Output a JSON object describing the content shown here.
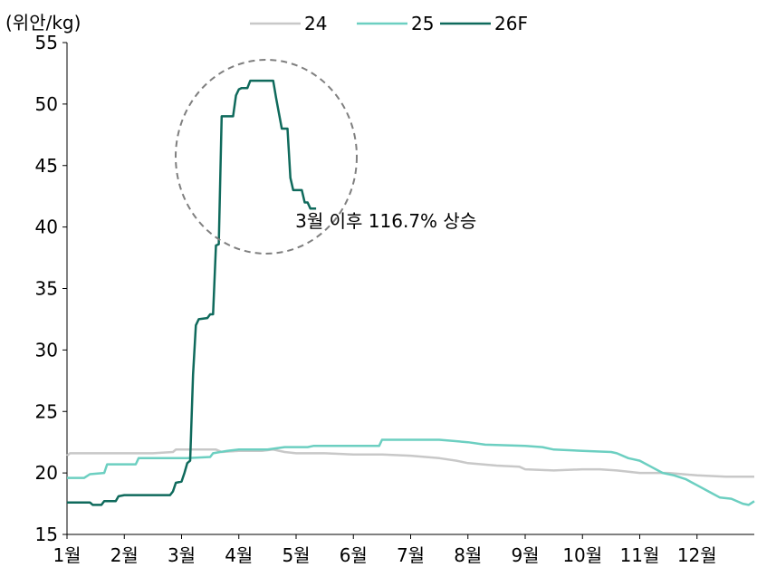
{
  "chart_data": {
    "type": "line",
    "title": "",
    "ylabel": "(위안/kg)",
    "xlabel": "",
    "ylim": [
      15,
      55
    ],
    "yticks": [
      15,
      20,
      25,
      30,
      35,
      40,
      45,
      50,
      55
    ],
    "xlim": [
      1,
      13
    ],
    "xticks": [
      {
        "label": "1월",
        "x": 1
      },
      {
        "label": "2월",
        "x": 2
      },
      {
        "label": "3월",
        "x": 3
      },
      {
        "label": "4월",
        "x": 4
      },
      {
        "label": "5월",
        "x": 5
      },
      {
        "label": "6월",
        "x": 6
      },
      {
        "label": "7월",
        "x": 7
      },
      {
        "label": "8월",
        "x": 8
      },
      {
        "label": "9월",
        "x": 9
      },
      {
        "label": "10월",
        "x": 10
      },
      {
        "label": "11월",
        "x": 11
      },
      {
        "label": "12월",
        "x": 12
      }
    ],
    "grid": false,
    "legend": "top",
    "series": [
      {
        "name": "24",
        "color": "#c8c8c8",
        "points": [
          [
            1.0,
            21.4
          ],
          [
            1.05,
            21.6
          ],
          [
            1.5,
            21.6
          ],
          [
            2.5,
            21.6
          ],
          [
            2.85,
            21.7
          ],
          [
            2.9,
            21.9
          ],
          [
            3.6,
            21.9
          ],
          [
            3.7,
            21.7
          ],
          [
            4.0,
            21.8
          ],
          [
            4.4,
            21.8
          ],
          [
            4.6,
            21.9
          ],
          [
            4.8,
            21.7
          ],
          [
            5.0,
            21.6
          ],
          [
            5.5,
            21.6
          ],
          [
            6.0,
            21.5
          ],
          [
            6.5,
            21.5
          ],
          [
            7.0,
            21.4
          ],
          [
            7.5,
            21.2
          ],
          [
            7.8,
            21.0
          ],
          [
            8.0,
            20.8
          ],
          [
            8.5,
            20.6
          ],
          [
            8.9,
            20.5
          ],
          [
            9.0,
            20.3
          ],
          [
            9.5,
            20.2
          ],
          [
            10.0,
            20.3
          ],
          [
            10.3,
            20.3
          ],
          [
            10.6,
            20.2
          ],
          [
            11.0,
            20.0
          ],
          [
            11.5,
            20.0
          ],
          [
            12.0,
            19.8
          ],
          [
            12.5,
            19.7
          ],
          [
            13.0,
            19.7
          ]
        ]
      },
      {
        "name": "25",
        "color": "#6ccfc1",
        "points": [
          [
            1.0,
            19.6
          ],
          [
            1.3,
            19.6
          ],
          [
            1.4,
            19.9
          ],
          [
            1.65,
            20.0
          ],
          [
            1.7,
            20.7
          ],
          [
            2.2,
            20.7
          ],
          [
            2.25,
            21.2
          ],
          [
            3.0,
            21.2
          ],
          [
            3.1,
            21.2
          ],
          [
            3.5,
            21.3
          ],
          [
            3.55,
            21.6
          ],
          [
            3.8,
            21.8
          ],
          [
            4.0,
            21.9
          ],
          [
            4.5,
            21.9
          ],
          [
            4.8,
            22.1
          ],
          [
            5.2,
            22.1
          ],
          [
            5.3,
            22.2
          ],
          [
            6.0,
            22.2
          ],
          [
            6.45,
            22.2
          ],
          [
            6.5,
            22.7
          ],
          [
            7.5,
            22.7
          ],
          [
            8.0,
            22.5
          ],
          [
            8.3,
            22.3
          ],
          [
            9.0,
            22.2
          ],
          [
            9.3,
            22.1
          ],
          [
            9.5,
            21.9
          ],
          [
            10.0,
            21.8
          ],
          [
            10.5,
            21.7
          ],
          [
            10.6,
            21.6
          ],
          [
            10.8,
            21.2
          ],
          [
            11.0,
            21.0
          ],
          [
            11.2,
            20.5
          ],
          [
            11.4,
            20.0
          ],
          [
            11.6,
            19.8
          ],
          [
            11.8,
            19.5
          ],
          [
            12.0,
            19.0
          ],
          [
            12.2,
            18.5
          ],
          [
            12.4,
            18.0
          ],
          [
            12.6,
            17.9
          ],
          [
            12.8,
            17.5
          ],
          [
            12.9,
            17.4
          ],
          [
            13.0,
            17.7
          ]
        ]
      },
      {
        "name": "26F",
        "color": "#0f6a5c",
        "points": [
          [
            1.0,
            17.6
          ],
          [
            1.4,
            17.6
          ],
          [
            1.45,
            17.4
          ],
          [
            1.6,
            17.4
          ],
          [
            1.65,
            17.7
          ],
          [
            1.85,
            17.7
          ],
          [
            1.9,
            18.1
          ],
          [
            2.0,
            18.2
          ],
          [
            2.5,
            18.2
          ],
          [
            2.8,
            18.2
          ],
          [
            2.85,
            18.5
          ],
          [
            2.9,
            19.2
          ],
          [
            3.0,
            19.3
          ],
          [
            3.05,
            20.0
          ],
          [
            3.1,
            20.8
          ],
          [
            3.15,
            21.0
          ],
          [
            3.2,
            28.0
          ],
          [
            3.25,
            32.0
          ],
          [
            3.3,
            32.5
          ],
          [
            3.45,
            32.6
          ],
          [
            3.5,
            32.9
          ],
          [
            3.55,
            32.9
          ],
          [
            3.6,
            38.5
          ],
          [
            3.65,
            38.6
          ],
          [
            3.7,
            49.0
          ],
          [
            3.9,
            49.0
          ],
          [
            3.95,
            50.7
          ],
          [
            4.0,
            51.2
          ],
          [
            4.05,
            51.3
          ],
          [
            4.15,
            51.3
          ],
          [
            4.2,
            51.9
          ],
          [
            4.6,
            51.9
          ],
          [
            4.65,
            50.5
          ],
          [
            4.75,
            48.0
          ],
          [
            4.85,
            48.0
          ],
          [
            4.9,
            44.0
          ],
          [
            4.95,
            43.0
          ],
          [
            5.1,
            43.0
          ],
          [
            5.15,
            42.0
          ],
          [
            5.2,
            42.0
          ],
          [
            5.25,
            41.5
          ],
          [
            5.3,
            41.5
          ],
          [
            5.35,
            41.5
          ]
        ]
      }
    ],
    "annotations": [
      {
        "text": "3월 이후 116.7% 상승",
        "x": 6.6,
        "y": 40.5
      }
    ]
  }
}
